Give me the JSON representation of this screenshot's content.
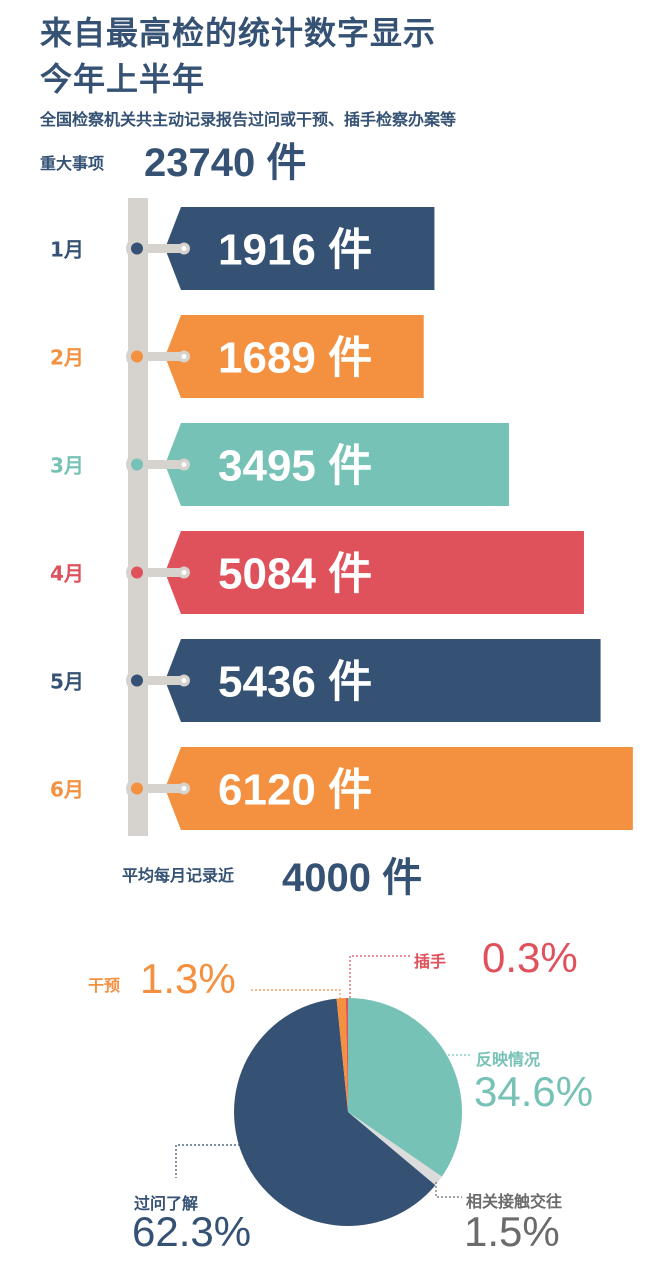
{
  "header": {
    "title_line1": "来自最高检的统计数字显示",
    "title_line2": "今年上半年",
    "subtitle": "全国检察机关共主动记录报告过问或干预、插手检察办案等",
    "total_label": "重大事项",
    "total_value": "23740 件"
  },
  "colors": {
    "navy": "#355274",
    "orange": "#f39140",
    "teal": "#76c2b6",
    "red": "#e0525b",
    "gray": "#6b6b6b",
    "pole": "#d6d2cd",
    "light": "#dcdcdc"
  },
  "chart_data": [
    {
      "type": "bar",
      "orientation": "horizontal",
      "categories": [
        "1月",
        "2月",
        "3月",
        "4月",
        "5月",
        "6月"
      ],
      "values": [
        1916,
        1689,
        3495,
        5084,
        5436,
        6120
      ],
      "value_labels": [
        "1916 件",
        "1689 件",
        "3495 件",
        "5084 件",
        "5436 件",
        "6120 件"
      ],
      "bar_colors": [
        "#355274",
        "#f39140",
        "#76c2b6",
        "#e0525b",
        "#355274",
        "#f39140"
      ]
    },
    {
      "type": "pie",
      "start": "top",
      "direction": "clockwise",
      "slices": [
        {
          "label": "反映情况",
          "value": 34.6,
          "text": "34.6%",
          "color": "#76c2b6"
        },
        {
          "label": "相关接触交往",
          "value": 1.5,
          "text": "1.5%",
          "color": "#dcdcdc"
        },
        {
          "label": "过问了解",
          "value": 62.3,
          "text": "62.3%",
          "color": "#355274"
        },
        {
          "label": "干预",
          "value": 1.3,
          "text": "1.3%",
          "color": "#f39140"
        },
        {
          "label": "插手",
          "value": 0.3,
          "text": "0.3%",
          "color": "#e0525b"
        }
      ]
    }
  ],
  "average": {
    "label": "平均每月记录近",
    "value": "4000 件"
  }
}
